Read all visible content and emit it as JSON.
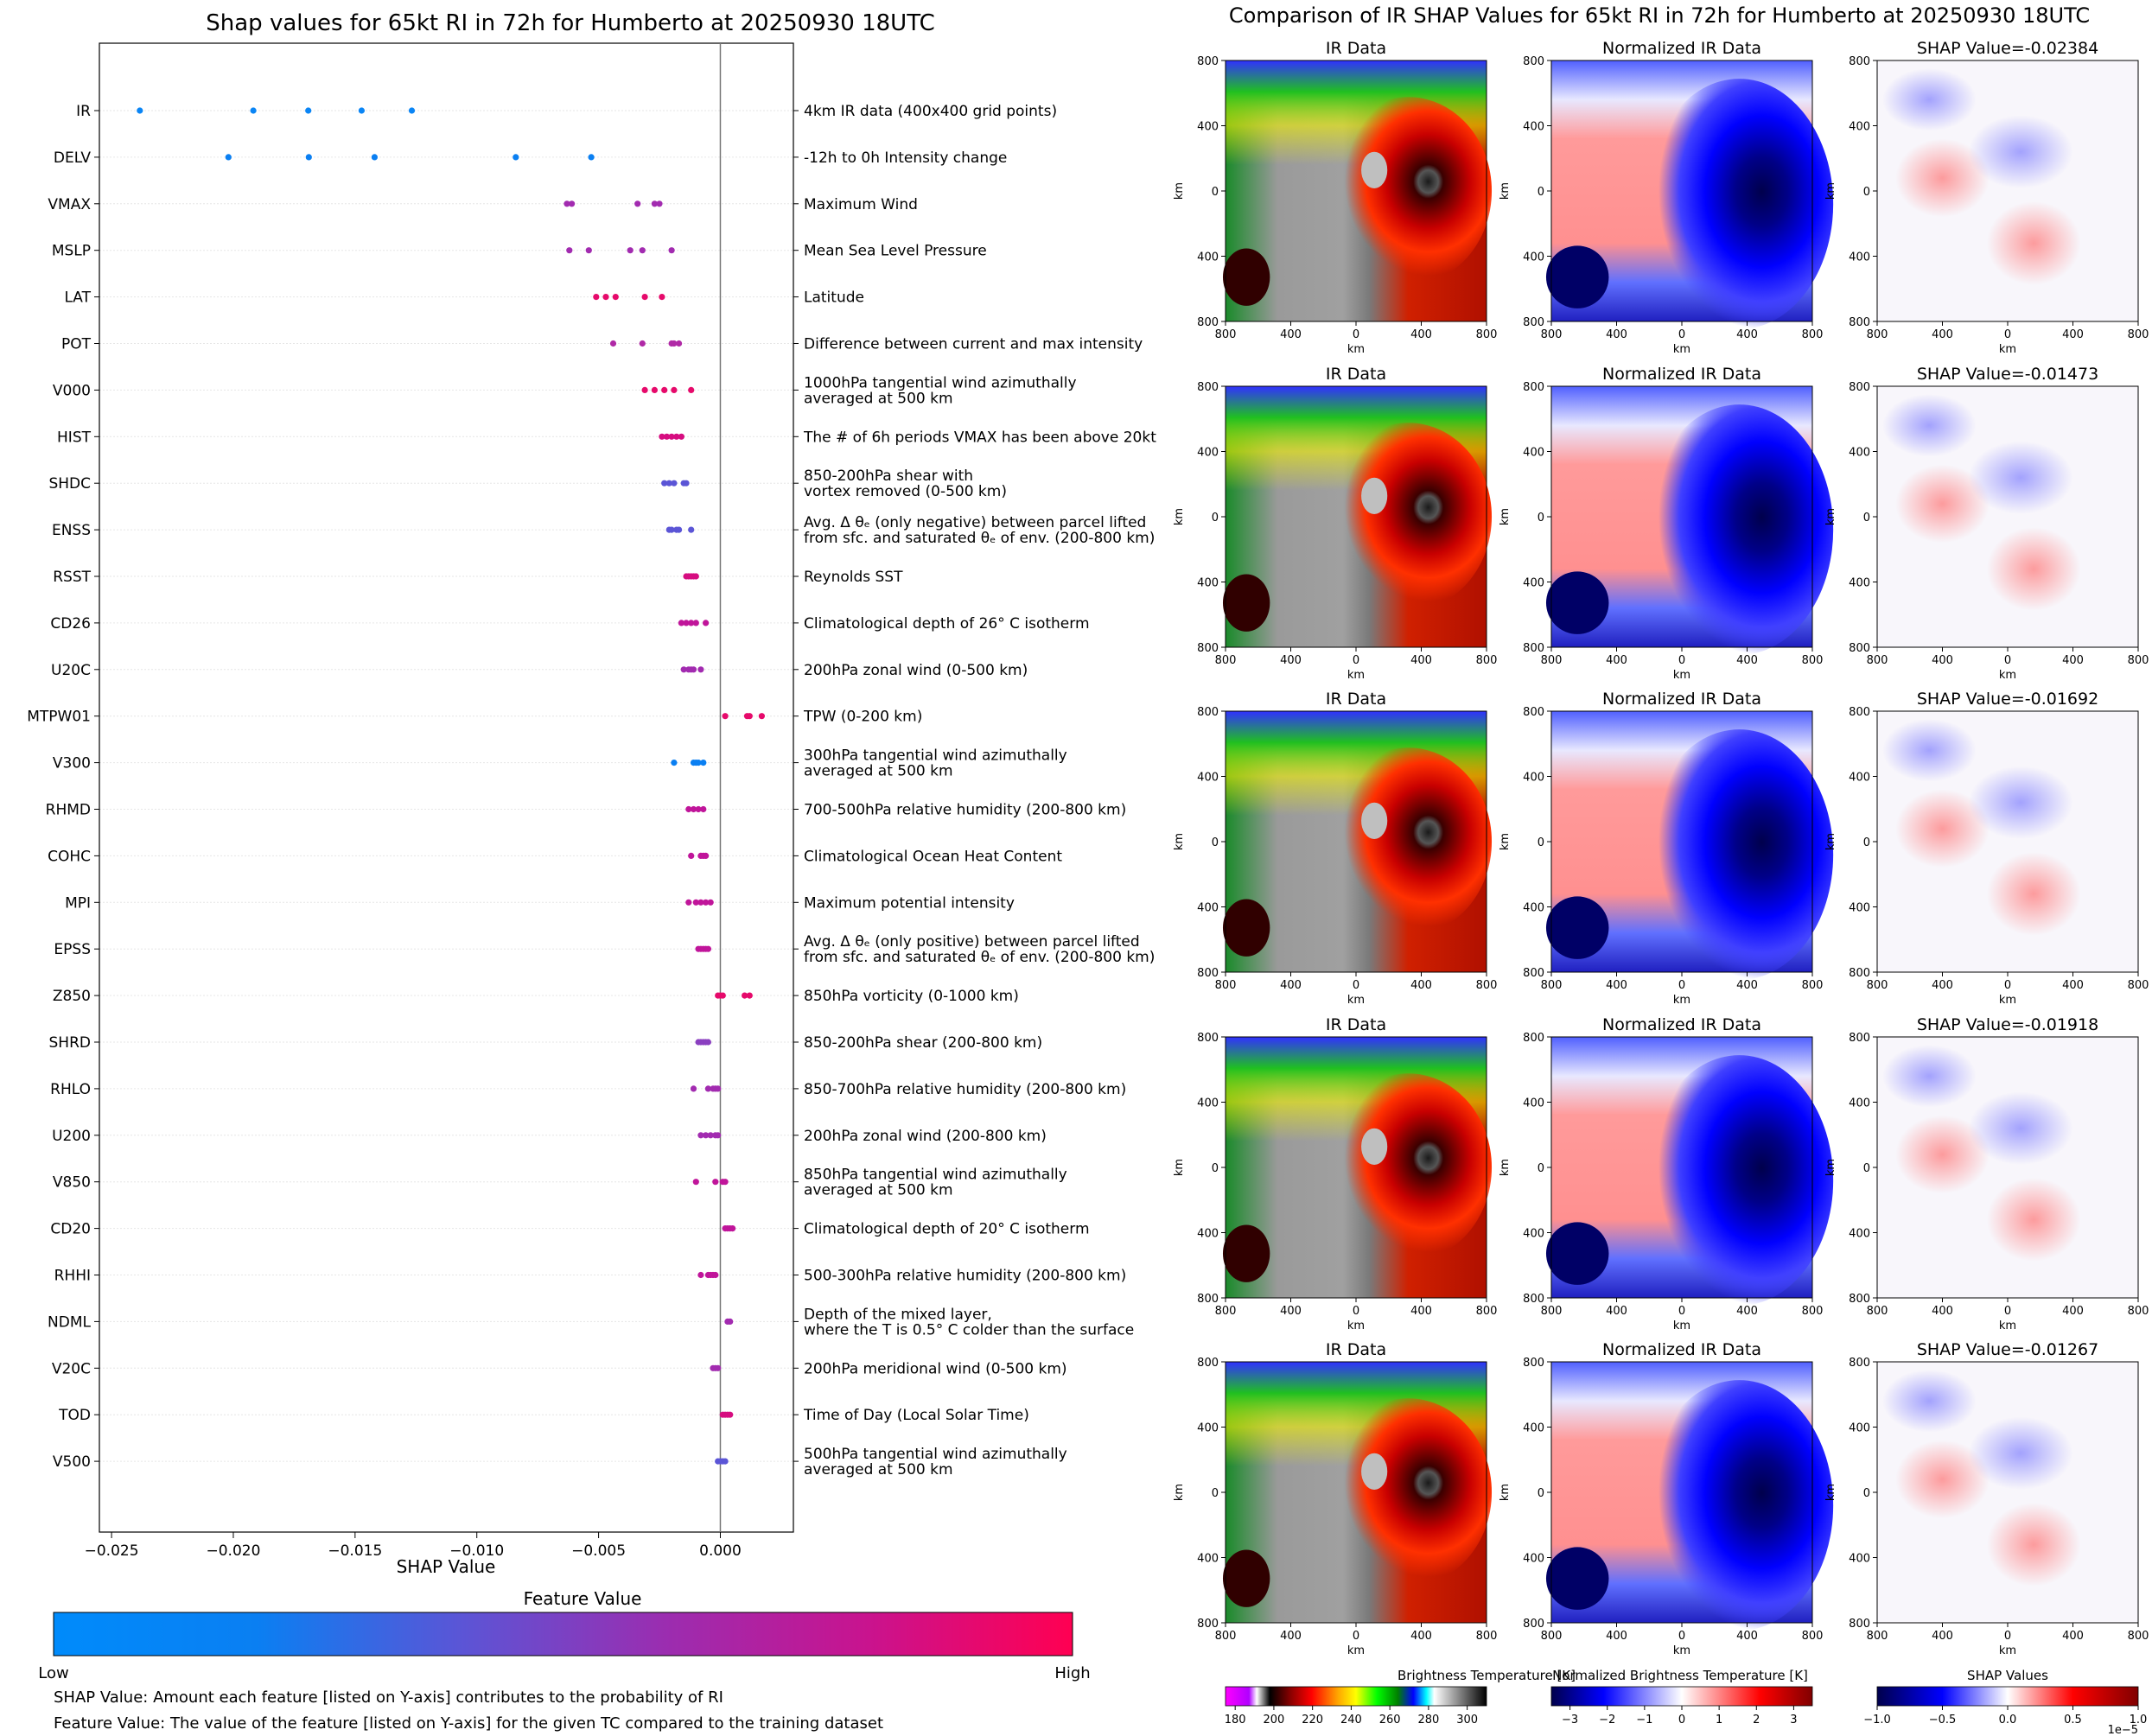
{
  "figure": {
    "left_title": "Shap values for 65kt RI in 72h for Humberto at 20250930 18UTC",
    "right_title": "Comparison of IR SHAP Values for 65kt RI in 72h for Humberto at 20250930 18UTC",
    "colorbar": {
      "title": "Feature Value",
      "low_label": "Low",
      "high_label": "High",
      "colors": [
        "#008bfb",
        "#0a7ff2",
        "#5b55d6",
        "#9b2db0",
        "#c9138e",
        "#ff0052"
      ]
    },
    "footnotes": [
      "SHAP Value: Amount each feature [listed on Y-axis] contributes to the probability of RI",
      "Feature Value: The value of the feature [listed on Y-axis] for the given TC compared to the training dataset"
    ]
  },
  "chart_data": [
    {
      "type": "scatter",
      "title": "Shap values for 65kt RI in 72h for Humberto at 20250930 18UTC",
      "xlabel": "SHAP Value",
      "ylabel": "",
      "xlim": [
        -0.0255,
        0.003
      ],
      "xticks": [
        -0.025,
        -0.02,
        -0.015,
        -0.01,
        -0.005,
        0.0
      ],
      "xtick_labels": [
        "−0.025",
        "−0.020",
        "−0.015",
        "−0.010",
        "−0.005",
        "0.000"
      ],
      "zero_line": 0.0,
      "features": [
        {
          "name": "IR",
          "desc": [
            "4km IR data (400x400 grid points)"
          ],
          "color": "#0a85f5",
          "values": [
            -0.02384,
            -0.01918,
            -0.01692,
            -0.01473,
            -0.01267
          ]
        },
        {
          "name": "DELV",
          "desc": [
            "-12h to 0h Intensity change"
          ],
          "color": "#0a7ff2",
          "values": [
            -0.0202,
            -0.0169,
            -0.0142,
            -0.0084,
            -0.0053
          ]
        },
        {
          "name": "VMAX",
          "desc": [
            "Maximum Wind"
          ],
          "color": "#a22bb0",
          "values": [
            -0.0063,
            -0.0061,
            -0.0034,
            -0.0027,
            -0.0025
          ]
        },
        {
          "name": "MSLP",
          "desc": [
            "Mean Sea Level Pressure"
          ],
          "color": "#a22bb0",
          "values": [
            -0.0062,
            -0.0054,
            -0.0037,
            -0.0032,
            -0.002
          ]
        },
        {
          "name": "LAT",
          "desc": [
            "Latitude"
          ],
          "color": "#e60a6b",
          "values": [
            -0.0051,
            -0.0047,
            -0.0043,
            -0.0031,
            -0.0024
          ]
        },
        {
          "name": "POT",
          "desc": [
            "Difference between current and max intensity"
          ],
          "color": "#b02aa6",
          "values": [
            -0.0044,
            -0.0032,
            -0.002,
            -0.0019,
            -0.0017
          ]
        },
        {
          "name": "V000",
          "desc": [
            "1000hPa tangential wind azimuthally",
            "averaged at 500 km"
          ],
          "color": "#e60a6b",
          "values": [
            -0.0031,
            -0.0027,
            -0.0023,
            -0.0019,
            -0.0012
          ]
        },
        {
          "name": "HIST",
          "desc": [
            "The # of 6h periods VMAX has been above 20kt"
          ],
          "color": "#d60d80",
          "values": [
            -0.0024,
            -0.0022,
            -0.002,
            -0.0018,
            -0.0016
          ]
        },
        {
          "name": "SHDC",
          "desc": [
            "850-200hPa shear with",
            "vortex removed (0-500 km)"
          ],
          "color": "#5b55d6",
          "values": [
            -0.0023,
            -0.0021,
            -0.0019,
            -0.0015,
            -0.0014
          ]
        },
        {
          "name": "ENSS",
          "desc": [
            "Avg. Δ θₑ (only negative) between parcel lifted",
            "from sfc. and saturated θₑ of env. (200-800 km)"
          ],
          "color": "#5b55d6",
          "values": [
            -0.0021,
            -0.002,
            -0.0018,
            -0.0017,
            -0.0012
          ]
        },
        {
          "name": "RSST",
          "desc": [
            "Reynolds SST"
          ],
          "color": "#d60d80",
          "values": [
            -0.0014,
            -0.0013,
            -0.0012,
            -0.0011,
            -0.001
          ]
        },
        {
          "name": "CD26",
          "desc": [
            "Climatological depth of 26° C isotherm"
          ],
          "color": "#c0159a",
          "values": [
            -0.0016,
            -0.0014,
            -0.0012,
            -0.001,
            -0.0006
          ]
        },
        {
          "name": "U20C",
          "desc": [
            "200hPa zonal wind (0-500 km)"
          ],
          "color": "#a22bb0",
          "values": [
            -0.0015,
            -0.0013,
            -0.0012,
            -0.0011,
            -0.0008
          ]
        },
        {
          "name": "MTPW01",
          "desc": [
            "TPW (0-200 km)"
          ],
          "color": "#e60a6b",
          "values": [
            0.0002,
            0.0011,
            0.0012,
            0.0017
          ]
        },
        {
          "name": "V300",
          "desc": [
            "300hPa tangential wind azimuthally",
            "averaged at 500 km"
          ],
          "color": "#0a7ff2",
          "values": [
            -0.0019,
            -0.0011,
            -0.001,
            -0.0009,
            -0.0007
          ]
        },
        {
          "name": "RHMD",
          "desc": [
            "700-500hPa relative humidity (200-800 km)"
          ],
          "color": "#c0159a",
          "values": [
            -0.0013,
            -0.0011,
            -0.0009,
            -0.0007
          ]
        },
        {
          "name": "COHC",
          "desc": [
            "Climatological Ocean Heat Content"
          ],
          "color": "#c0159a",
          "values": [
            -0.0012,
            -0.0008,
            -0.0007,
            -0.0006
          ]
        },
        {
          "name": "MPI",
          "desc": [
            "Maximum potential intensity"
          ],
          "color": "#c0159a",
          "values": [
            -0.0013,
            -0.001,
            -0.0008,
            -0.0006,
            -0.0004
          ]
        },
        {
          "name": "EPSS",
          "desc": [
            "Avg. Δ θₑ (only positive) between parcel lifted",
            "from sfc. and saturated θₑ of env. (200-800 km)"
          ],
          "color": "#c0159a",
          "values": [
            -0.0009,
            -0.0008,
            -0.0007,
            -0.0006,
            -0.0005
          ]
        },
        {
          "name": "Z850",
          "desc": [
            "850hPa vorticity (0-1000 km)"
          ],
          "color": "#e60a6b",
          "values": [
            -0.0001,
            0.0,
            0.0001,
            0.001,
            0.0012
          ]
        },
        {
          "name": "SHRD",
          "desc": [
            "850-200hPa shear (200-800 km)"
          ],
          "color": "#8a3fc0",
          "values": [
            -0.0009,
            -0.0008,
            -0.0007,
            -0.0006,
            -0.0005
          ]
        },
        {
          "name": "RHLO",
          "desc": [
            "850-700hPa relative humidity (200-800 km)"
          ],
          "color": "#a22bb0",
          "values": [
            -0.0011,
            -0.0005,
            -0.0003,
            -0.0002,
            -0.0001
          ]
        },
        {
          "name": "U200",
          "desc": [
            "200hPa zonal wind (200-800 km)"
          ],
          "color": "#a22bb0",
          "values": [
            -0.0008,
            -0.0006,
            -0.0004,
            -0.0002,
            -0.0001
          ]
        },
        {
          "name": "V850",
          "desc": [
            "850hPa tangential wind azimuthally",
            "averaged at 500 km"
          ],
          "color": "#c0159a",
          "values": [
            -0.001,
            -0.0002,
            0.0001,
            0.0002
          ]
        },
        {
          "name": "CD20",
          "desc": [
            "Climatological depth of 20° C isotherm"
          ],
          "color": "#c0159a",
          "values": [
            0.0002,
            0.0003,
            0.0004,
            0.0005
          ]
        },
        {
          "name": "RHHI",
          "desc": [
            "500-300hPa relative humidity (200-800 km)"
          ],
          "color": "#c0159a",
          "values": [
            -0.0008,
            -0.0005,
            -0.0004,
            -0.0003,
            -0.0002
          ]
        },
        {
          "name": "NDML",
          "desc": [
            "Depth of the mixed layer,",
            "where the T is 0.5° C colder than the surface"
          ],
          "color": "#a22bb0",
          "values": [
            0.0003,
            0.0004
          ]
        },
        {
          "name": "V20C",
          "desc": [
            "200hPa meridional wind (0-500 km)"
          ],
          "color": "#a22bb0",
          "values": [
            -0.0003,
            -0.0002,
            -0.0001
          ]
        },
        {
          "name": "TOD",
          "desc": [
            "Time of Day (Local Solar Time)"
          ],
          "color": "#d60d80",
          "values": [
            0.0001,
            0.0002,
            0.0003,
            0.0004
          ]
        },
        {
          "name": "V500",
          "desc": [
            "500hPa tangential wind azimuthally",
            "averaged at 500 km"
          ],
          "color": "#5b55d6",
          "values": [
            -0.0001,
            0.0,
            0.0001,
            0.0002
          ]
        }
      ]
    },
    {
      "type": "heatmap",
      "title": "IR SHAP comparison panels",
      "column_titles": [
        "IR Data",
        "Normalized IR Data"
      ],
      "shap_titles": [
        "SHAP Value=-0.02384",
        "SHAP Value=-0.01473",
        "SHAP Value=-0.01692",
        "SHAP Value=-0.01918",
        "SHAP Value=-0.01267"
      ],
      "xlabel": "km",
      "ylabel": "km",
      "axis_ticks": [
        "800",
        "400",
        "0",
        "400",
        "800"
      ],
      "colorbars": [
        {
          "title": "Brightness Temperature [K]",
          "ticks": [
            "180",
            "200",
            "220",
            "240",
            "260",
            "280",
            "300"
          ],
          "vmin": 175,
          "vmax": 310
        },
        {
          "title": "Normalized Brightness Temperature [K]",
          "ticks": [
            "−3",
            "−2",
            "−1",
            "0",
            "1",
            "2",
            "3"
          ],
          "vmin": -3.5,
          "vmax": 3.5
        },
        {
          "title": "SHAP Values",
          "ticks": [
            "−1.0",
            "−0.5",
            "0.0",
            "0.5",
            "1.0"
          ],
          "vmin": -1.0,
          "vmax": 1.0,
          "exponent": "1e−5"
        }
      ]
    }
  ]
}
